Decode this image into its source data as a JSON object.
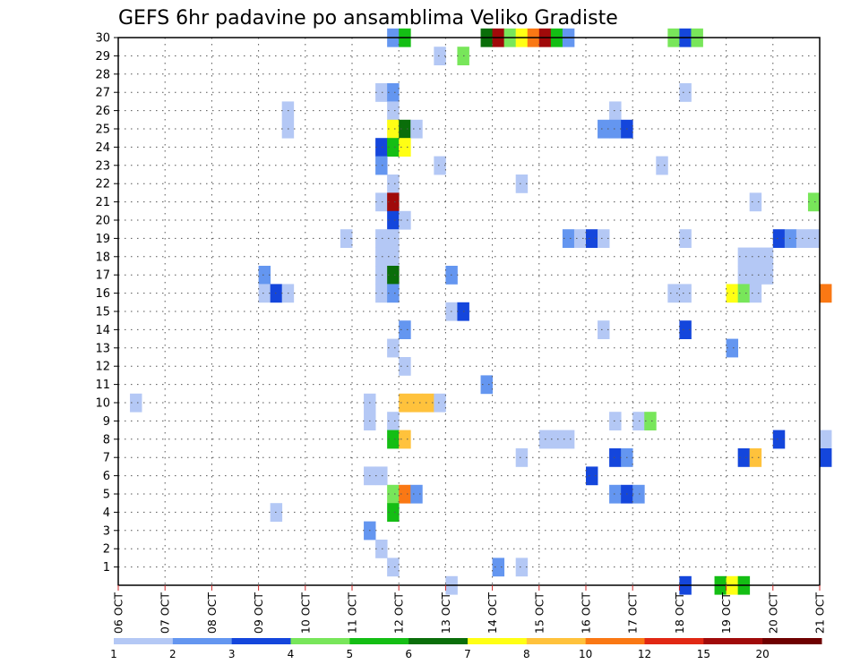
{
  "chart_data": {
    "type": "heatmap",
    "title": "GEFS 6hr padavine po ansamblima Veliko Gradiste",
    "x_tick_labels": [
      "06 OCT",
      "07 OCT",
      "08 OCT",
      "09 OCT",
      "10 OCT",
      "11 OCT",
      "12 OCT",
      "13 OCT",
      "14 OCT",
      "15 OCT",
      "16 OCT",
      "17 OCT",
      "18 OCT",
      "19 OCT",
      "20 OCT",
      "21 OCT"
    ],
    "y_tick_labels": [
      "1",
      "2",
      "3",
      "4",
      "5",
      "6",
      "7",
      "8",
      "9",
      "10",
      "11",
      "12",
      "13",
      "14",
      "15",
      "16",
      "17",
      "18",
      "19",
      "20",
      "21",
      "22",
      "23",
      "24",
      "25",
      "26",
      "27",
      "28",
      "29",
      "30"
    ],
    "x_steps_per_day": 4,
    "ylim": [
      0,
      30
    ],
    "grid": true,
    "legend": {
      "placement": "bottom",
      "labels": [
        "1",
        "2",
        "3",
        "4",
        "5",
        "6",
        "7",
        "8",
        "10",
        "12",
        "15",
        "20"
      ],
      "colors": [
        "#b4c8f5",
        "#6496f0",
        "#1446dc",
        "#78e65a",
        "#14be14",
        "#0a6e0a",
        "#ffff14",
        "#ffc23c",
        "#fa7814",
        "#e12814",
        "#a00a0a",
        "#6e0000"
      ]
    },
    "cells_note": "each cell: x = 6-hour step index from 06 OCT 00z, y = ensemble member, c = precipitation class index into legend.colors",
    "cells": [
      {
        "x": 23,
        "y": 30,
        "c": 1
      },
      {
        "x": 24,
        "y": 30,
        "c": 4
      },
      {
        "x": 31,
        "y": 30,
        "c": 5
      },
      {
        "x": 32,
        "y": 30,
        "c": 10
      },
      {
        "x": 33,
        "y": 30,
        "c": 3
      },
      {
        "x": 34,
        "y": 30,
        "c": 6
      },
      {
        "x": 35,
        "y": 30,
        "c": 8
      },
      {
        "x": 36,
        "y": 30,
        "c": 10
      },
      {
        "x": 37,
        "y": 30,
        "c": 4
      },
      {
        "x": 38,
        "y": 30,
        "c": 1
      },
      {
        "x": 47,
        "y": 30,
        "c": 3
      },
      {
        "x": 48,
        "y": 30,
        "c": 2
      },
      {
        "x": 49,
        "y": 30,
        "c": 3
      },
      {
        "x": 27,
        "y": 29,
        "c": 0
      },
      {
        "x": 29,
        "y": 29,
        "c": 3
      },
      {
        "x": 22,
        "y": 27,
        "c": 0
      },
      {
        "x": 23,
        "y": 27,
        "c": 1
      },
      {
        "x": 48,
        "y": 27,
        "c": 0
      },
      {
        "x": 14,
        "y": 26,
        "c": 0
      },
      {
        "x": 23,
        "y": 26,
        "c": 0
      },
      {
        "x": 42,
        "y": 26,
        "c": 0
      },
      {
        "x": 14,
        "y": 25,
        "c": 0
      },
      {
        "x": 23,
        "y": 25,
        "c": 6
      },
      {
        "x": 24,
        "y": 25,
        "c": 5
      },
      {
        "x": 25,
        "y": 25,
        "c": 0
      },
      {
        "x": 41,
        "y": 25,
        "c": 1
      },
      {
        "x": 42,
        "y": 25,
        "c": 1
      },
      {
        "x": 43,
        "y": 25,
        "c": 2
      },
      {
        "x": 22,
        "y": 24,
        "c": 2
      },
      {
        "x": 23,
        "y": 24,
        "c": 4
      },
      {
        "x": 24,
        "y": 24,
        "c": 6
      },
      {
        "x": 22,
        "y": 23,
        "c": 1
      },
      {
        "x": 27,
        "y": 23,
        "c": 0
      },
      {
        "x": 46,
        "y": 23,
        "c": 0
      },
      {
        "x": 23,
        "y": 22,
        "c": 0
      },
      {
        "x": 34,
        "y": 22,
        "c": 0
      },
      {
        "x": 22,
        "y": 21,
        "c": 0
      },
      {
        "x": 23,
        "y": 21,
        "c": 10
      },
      {
        "x": 54,
        "y": 21,
        "c": 0
      },
      {
        "x": 59,
        "y": 21,
        "c": 3
      },
      {
        "x": 23,
        "y": 20,
        "c": 2
      },
      {
        "x": 24,
        "y": 20,
        "c": 0
      },
      {
        "x": 19,
        "y": 19,
        "c": 0
      },
      {
        "x": 22,
        "y": 19,
        "c": 0
      },
      {
        "x": 23,
        "y": 19,
        "c": 0
      },
      {
        "x": 38,
        "y": 19,
        "c": 1
      },
      {
        "x": 39,
        "y": 19,
        "c": 0
      },
      {
        "x": 40,
        "y": 19,
        "c": 2
      },
      {
        "x": 41,
        "y": 19,
        "c": 0
      },
      {
        "x": 48,
        "y": 19,
        "c": 0
      },
      {
        "x": 56,
        "y": 19,
        "c": 2
      },
      {
        "x": 57,
        "y": 19,
        "c": 1
      },
      {
        "x": 58,
        "y": 19,
        "c": 0
      },
      {
        "x": 59,
        "y": 19,
        "c": 0
      },
      {
        "x": 22,
        "y": 18,
        "c": 0
      },
      {
        "x": 23,
        "y": 18,
        "c": 0
      },
      {
        "x": 53,
        "y": 18,
        "c": 0
      },
      {
        "x": 54,
        "y": 18,
        "c": 0
      },
      {
        "x": 55,
        "y": 18,
        "c": 0
      },
      {
        "x": 12,
        "y": 17,
        "c": 1
      },
      {
        "x": 22,
        "y": 17,
        "c": 0
      },
      {
        "x": 23,
        "y": 17,
        "c": 5
      },
      {
        "x": 28,
        "y": 17,
        "c": 1
      },
      {
        "x": 53,
        "y": 17,
        "c": 0
      },
      {
        "x": 54,
        "y": 17,
        "c": 0
      },
      {
        "x": 55,
        "y": 17,
        "c": 0
      },
      {
        "x": 12,
        "y": 16,
        "c": 0
      },
      {
        "x": 13,
        "y": 16,
        "c": 2
      },
      {
        "x": 14,
        "y": 16,
        "c": 0
      },
      {
        "x": 22,
        "y": 16,
        "c": 0
      },
      {
        "x": 23,
        "y": 16,
        "c": 1
      },
      {
        "x": 47,
        "y": 16,
        "c": 0
      },
      {
        "x": 48,
        "y": 16,
        "c": 0
      },
      {
        "x": 52,
        "y": 16,
        "c": 6
      },
      {
        "x": 53,
        "y": 16,
        "c": 3
      },
      {
        "x": 54,
        "y": 16,
        "c": 0
      },
      {
        "x": 60,
        "y": 16,
        "c": 8
      },
      {
        "x": 28,
        "y": 15,
        "c": 0
      },
      {
        "x": 29,
        "y": 15,
        "c": 2
      },
      {
        "x": 24,
        "y": 14,
        "c": 1
      },
      {
        "x": 41,
        "y": 14,
        "c": 0
      },
      {
        "x": 48,
        "y": 14,
        "c": 2
      },
      {
        "x": 23,
        "y": 13,
        "c": 0
      },
      {
        "x": 52,
        "y": 13,
        "c": 1
      },
      {
        "x": 24,
        "y": 12,
        "c": 0
      },
      {
        "x": 31,
        "y": 11,
        "c": 1
      },
      {
        "x": 1,
        "y": 10,
        "c": 0
      },
      {
        "x": 21,
        "y": 10,
        "c": 0
      },
      {
        "x": 24,
        "y": 10,
        "c": 7
      },
      {
        "x": 25,
        "y": 10,
        "c": 7
      },
      {
        "x": 26,
        "y": 10,
        "c": 7
      },
      {
        "x": 27,
        "y": 10,
        "c": 0
      },
      {
        "x": 21,
        "y": 9,
        "c": 0
      },
      {
        "x": 23,
        "y": 9,
        "c": 0
      },
      {
        "x": 42,
        "y": 9,
        "c": 0
      },
      {
        "x": 44,
        "y": 9,
        "c": 0
      },
      {
        "x": 45,
        "y": 9,
        "c": 3
      },
      {
        "x": 23,
        "y": 8,
        "c": 4
      },
      {
        "x": 24,
        "y": 8,
        "c": 7
      },
      {
        "x": 36,
        "y": 8,
        "c": 0
      },
      {
        "x": 37,
        "y": 8,
        "c": 0
      },
      {
        "x": 38,
        "y": 8,
        "c": 0
      },
      {
        "x": 56,
        "y": 8,
        "c": 2
      },
      {
        "x": 60,
        "y": 8,
        "c": 0
      },
      {
        "x": 34,
        "y": 7,
        "c": 0
      },
      {
        "x": 42,
        "y": 7,
        "c": 2
      },
      {
        "x": 43,
        "y": 7,
        "c": 1
      },
      {
        "x": 53,
        "y": 7,
        "c": 2
      },
      {
        "x": 54,
        "y": 7,
        "c": 7
      },
      {
        "x": 60,
        "y": 7,
        "c": 2
      },
      {
        "x": 21,
        "y": 6,
        "c": 0
      },
      {
        "x": 22,
        "y": 6,
        "c": 0
      },
      {
        "x": 40,
        "y": 6,
        "c": 2
      },
      {
        "x": 23,
        "y": 5,
        "c": 3
      },
      {
        "x": 24,
        "y": 5,
        "c": 8
      },
      {
        "x": 25,
        "y": 5,
        "c": 1
      },
      {
        "x": 42,
        "y": 5,
        "c": 1
      },
      {
        "x": 43,
        "y": 5,
        "c": 2
      },
      {
        "x": 44,
        "y": 5,
        "c": 1
      },
      {
        "x": 13,
        "y": 4,
        "c": 0
      },
      {
        "x": 23,
        "y": 4,
        "c": 4
      },
      {
        "x": 21,
        "y": 3,
        "c": 1
      },
      {
        "x": 22,
        "y": 2,
        "c": 0
      },
      {
        "x": 23,
        "y": 1,
        "c": 0
      },
      {
        "x": 32,
        "y": 1,
        "c": 1
      },
      {
        "x": 34,
        "y": 1,
        "c": 0
      },
      {
        "x": 28,
        "y": 0,
        "c": 0
      },
      {
        "x": 48,
        "y": 0,
        "c": 2
      },
      {
        "x": 51,
        "y": 0,
        "c": 4
      },
      {
        "x": 52,
        "y": 0,
        "c": 6
      },
      {
        "x": 53,
        "y": 0,
        "c": 4
      }
    ]
  }
}
